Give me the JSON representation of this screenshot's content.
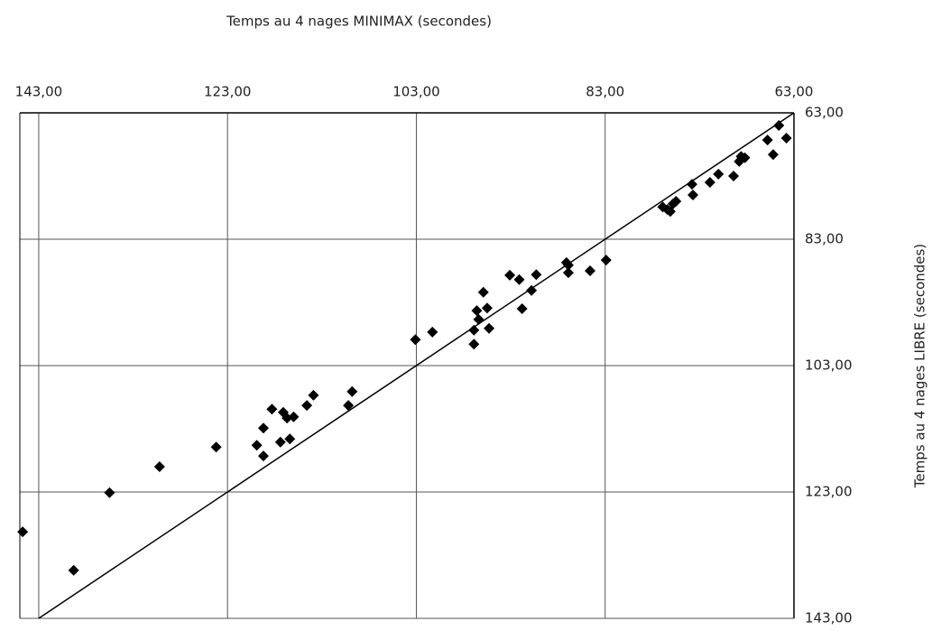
{
  "chart_data": {
    "type": "scatter",
    "x_label": "Temps au 4 nages MINIMAX (secondes)",
    "y_label": "Temps au 4 nages LIBRE (secondes)",
    "xlim": [
      145,
      63
    ],
    "ylim": [
      63,
      143
    ],
    "xticks": [
      {
        "value": 143,
        "label": "143,00"
      },
      {
        "value": 123,
        "label": "123,00"
      },
      {
        "value": 103,
        "label": "103,00"
      },
      {
        "value": 83,
        "label": "83,00"
      },
      {
        "value": 63,
        "label": "63,00"
      }
    ],
    "yticks": [
      {
        "value": 63,
        "label": "63,00"
      },
      {
        "value": 83,
        "label": "83,00"
      },
      {
        "value": 103,
        "label": "103,00"
      },
      {
        "value": 123,
        "label": "123,00"
      },
      {
        "value": 143,
        "label": "143,00"
      }
    ],
    "grid": true,
    "identity_line": true,
    "color": "#000000",
    "x": [
      144.7,
      139.3,
      135.5,
      130.2,
      124.2,
      119.9,
      119.2,
      119.2,
      118.3,
      117.4,
      117.1,
      116.7,
      116.4,
      116.0,
      114.6,
      113.9,
      110.2,
      109.8,
      103.1,
      101.3,
      96.9,
      96.9,
      96.6,
      96.4,
      95.9,
      95.5,
      95.3,
      93.1,
      92.1,
      91.8,
      90.8,
      90.3,
      87.1,
      86.9,
      86.9,
      84.6,
      82.9,
      76.9,
      76.4,
      76.1,
      75.8,
      75.5,
      73.8,
      73.7,
      71.9,
      71.0,
      69.4,
      68.8,
      68.6,
      68.2,
      65.8,
      65.2,
      64.6,
      63.8
    ],
    "values": [
      129.3,
      135.4,
      123.1,
      119.0,
      115.9,
      115.6,
      117.3,
      112.9,
      109.9,
      115.1,
      110.4,
      111.3,
      114.6,
      111.1,
      109.3,
      107.7,
      109.3,
      107.1,
      98.9,
      97.7,
      99.6,
      97.4,
      94.3,
      95.7,
      91.4,
      93.9,
      97.1,
      88.7,
      89.4,
      94.0,
      91.1,
      88.6,
      86.7,
      88.3,
      87.1,
      88.0,
      86.3,
      77.9,
      78.3,
      78.6,
      77.4,
      77.0,
      74.3,
      76.0,
      74.0,
      72.7,
      73.0,
      70.7,
      69.9,
      70.1,
      67.3,
      69.6,
      65.0,
      67.0
    ]
  }
}
